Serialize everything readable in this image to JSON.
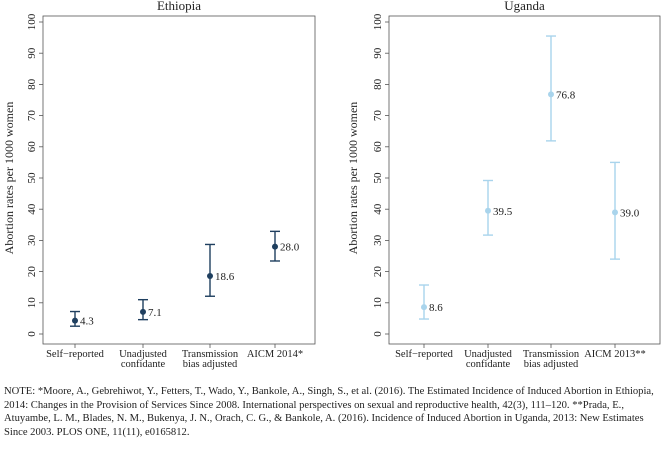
{
  "chart_data": [
    {
      "type": "errorbar",
      "title": "Ethiopia",
      "ylabel": "Abortion rates per 1000 women",
      "ylim": [
        0,
        100
      ],
      "yticks": [
        "0",
        "10",
        "20",
        "30",
        "40",
        "50",
        "60",
        "70",
        "80",
        "90",
        "100"
      ],
      "color": "#1f3f5f",
      "points": [
        {
          "category": [
            "Self−reported"
          ],
          "value": 4.3,
          "lower": 2.5,
          "upper": 7.2,
          "label": "4.3"
        },
        {
          "category": [
            "Unadjusted",
            "confidante"
          ],
          "value": 7.1,
          "lower": 4.6,
          "upper": 11.0,
          "label": "7.1"
        },
        {
          "category": [
            "Transmission",
            "bias adjusted"
          ],
          "value": 18.6,
          "lower": 12.1,
          "upper": 28.7,
          "label": "18.6"
        },
        {
          "category": [
            "AICM 2014*"
          ],
          "value": 28.0,
          "lower": 23.4,
          "upper": 32.9,
          "label": "28.0"
        }
      ]
    },
    {
      "type": "errorbar",
      "title": "Uganda",
      "ylabel": "Abortion rates per 1000 women",
      "ylim": [
        0,
        100
      ],
      "yticks": [
        "0",
        "10",
        "20",
        "30",
        "40",
        "50",
        "60",
        "70",
        "80",
        "90",
        "100"
      ],
      "color": "#a9d4ec",
      "points": [
        {
          "category": [
            "Self−reported"
          ],
          "value": 8.6,
          "lower": 4.8,
          "upper": 15.7,
          "label": "8.6"
        },
        {
          "category": [
            "Unadjusted",
            "confidante"
          ],
          "value": 39.5,
          "lower": 31.7,
          "upper": 49.2,
          "label": "39.5"
        },
        {
          "category": [
            "Transmission",
            "bias adjusted"
          ],
          "value": 76.8,
          "lower": 61.9,
          "upper": 95.5,
          "label": "76.8"
        },
        {
          "category": [
            "AICM 2013**"
          ],
          "value": 39.0,
          "lower": 24.0,
          "upper": 55.0,
          "label": "39.0"
        }
      ]
    }
  ],
  "note": "NOTE: *Moore, A., Gebrehiwot, Y., Fetters, T., Wado, Y., Bankole, A., Singh, S., et al. (2016). The Estimated Incidence of Induced Abortion in Ethiopia, 2014: Changes in the Provision of Services Since 2008. International perspectives on sexual and reproductive health, 42(3), 111–120. **Prada, E., Atuyambe, L. M., Blades, N. M., Bukenya, J. N., Orach, C. G., & Bankole, A. (2016). Incidence of Induced Abortion in Uganda, 2013: New Estimates Since 2003. PLOS ONE, 11(11), e0165812."
}
